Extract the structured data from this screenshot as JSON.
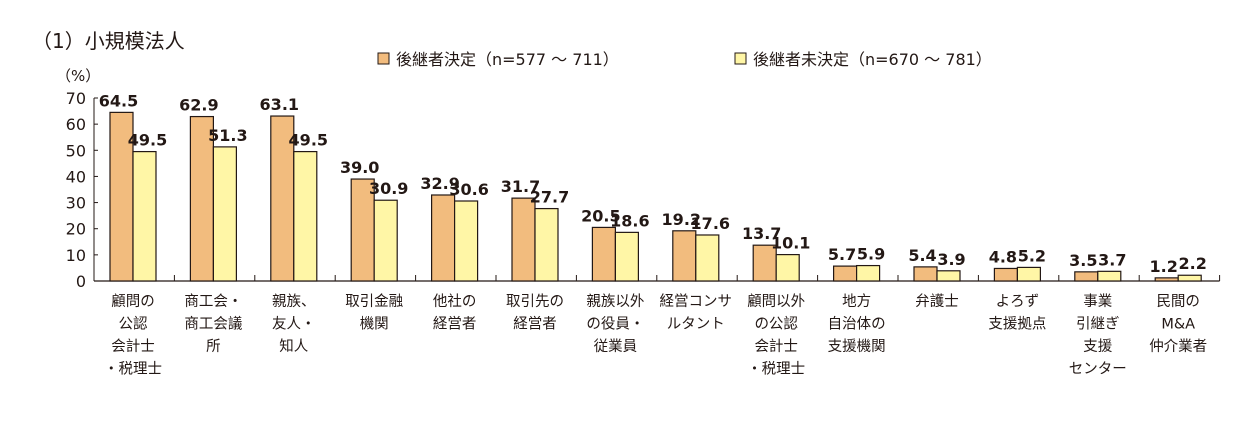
{
  "chart_data": {
    "type": "bar",
    "title": "（1）小規模法人",
    "ylabel": "（%）",
    "xlabel": "",
    "ylim": [
      0,
      70
    ],
    "yticks": [
      0,
      10,
      20,
      30,
      40,
      50,
      60,
      70
    ],
    "grid": false,
    "legend_position": "top",
    "categories": [
      [
        "顧問の",
        "公認",
        "会計士",
        "・税理士"
      ],
      [
        "商工会・",
        "商工会議",
        "所"
      ],
      [
        "親族、",
        "友人・",
        "知人"
      ],
      [
        "取引金融",
        "機関"
      ],
      [
        "他社の",
        "経営者"
      ],
      [
        "取引先の",
        "経営者"
      ],
      [
        "親族以外",
        "の役員・",
        "従業員"
      ],
      [
        "経営コンサ",
        "ルタント"
      ],
      [
        "顧問以外",
        "の公認",
        "会計士",
        "・税理士"
      ],
      [
        "地方",
        "自治体の",
        "支援機関"
      ],
      [
        "弁護士"
      ],
      [
        "よろず",
        "支援拠点"
      ],
      [
        "事業",
        "引継ぎ",
        "支援",
        "センター"
      ],
      [
        "民間の",
        "M&A",
        "仲介業者"
      ]
    ],
    "series": [
      {
        "name": "後継者決定（n=577 ～ 711）",
        "color": "#F2BC7E",
        "values": [
          64.5,
          62.9,
          63.1,
          39.0,
          32.9,
          31.7,
          20.5,
          19.2,
          13.7,
          5.7,
          5.4,
          4.8,
          3.5,
          1.2
        ]
      },
      {
        "name": "後継者未決定（n=670 ～ 781）",
        "color": "#FFF6A6",
        "values": [
          49.5,
          51.3,
          49.5,
          30.9,
          30.6,
          27.7,
          18.6,
          17.6,
          10.1,
          5.9,
          3.9,
          5.2,
          3.7,
          2.2
        ]
      }
    ]
  }
}
